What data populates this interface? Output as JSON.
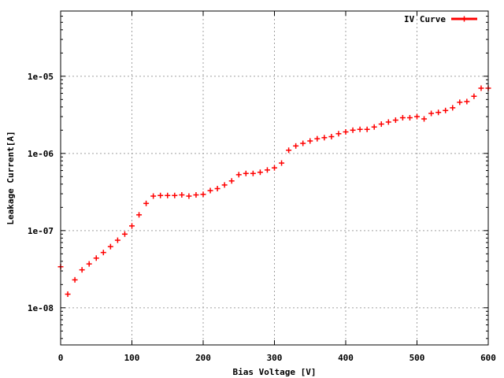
{
  "chart_data": {
    "type": "scatter",
    "title": "",
    "xlabel": "Bias Voltage [V]",
    "ylabel": "Leakage Current[A]",
    "xlim": [
      0,
      600
    ],
    "ylim": [
      3.3e-09,
      7e-05
    ],
    "y_scale": "log",
    "grid": true,
    "legend_position": "top-right",
    "x_ticks": [
      {
        "value": 0,
        "label": "0"
      },
      {
        "value": 100,
        "label": "100"
      },
      {
        "value": 200,
        "label": "200"
      },
      {
        "value": 300,
        "label": "300"
      },
      {
        "value": 400,
        "label": "400"
      },
      {
        "value": 500,
        "label": "500"
      },
      {
        "value": 600,
        "label": "600"
      }
    ],
    "y_ticks": [
      {
        "value": 1e-08,
        "label": "1e-08"
      },
      {
        "value": 1e-07,
        "label": "1e-07"
      },
      {
        "value": 1e-06,
        "label": "1e-06"
      },
      {
        "value": 1e-05,
        "label": "1e-05"
      }
    ],
    "series": [
      {
        "name": "IV Curve",
        "color": "#ff0000",
        "marker": "plus",
        "x": [
          0,
          10,
          20,
          30,
          40,
          50,
          60,
          70,
          80,
          90,
          100,
          110,
          120,
          130,
          140,
          150,
          160,
          170,
          180,
          190,
          200,
          210,
          220,
          230,
          240,
          250,
          260,
          270,
          280,
          290,
          300,
          310,
          320,
          330,
          340,
          350,
          360,
          370,
          380,
          390,
          400,
          410,
          420,
          430,
          440,
          450,
          460,
          470,
          480,
          490,
          500,
          510,
          520,
          530,
          540,
          550,
          560,
          570,
          580,
          590,
          600
        ],
        "y": [
          3.4e-08,
          1.5e-08,
          2.3e-08,
          3.1e-08,
          3.7e-08,
          4.4e-08,
          5.2e-08,
          6.2e-08,
          7.5e-08,
          9e-08,
          1.15e-07,
          1.6e-07,
          2.25e-07,
          2.8e-07,
          2.85e-07,
          2.85e-07,
          2.85e-07,
          2.9e-07,
          2.8e-07,
          2.9e-07,
          2.95e-07,
          3.3e-07,
          3.5e-07,
          3.9e-07,
          4.4e-07,
          5.3e-07,
          5.5e-07,
          5.5e-07,
          5.7e-07,
          6.1e-07,
          6.5e-07,
          7.5e-07,
          1.1e-06,
          1.25e-06,
          1.35e-06,
          1.45e-06,
          1.55e-06,
          1.6e-06,
          1.65e-06,
          1.8e-06,
          1.9e-06,
          2e-06,
          2.05e-06,
          2.05e-06,
          2.2e-06,
          2.4e-06,
          2.55e-06,
          2.7e-06,
          2.9e-06,
          2.9e-06,
          3e-06,
          2.8e-06,
          3.3e-06,
          3.4e-06,
          3.6e-06,
          3.9e-06,
          4.6e-06,
          4.7e-06,
          5.5e-06,
          7e-06,
          7e-06
        ]
      }
    ]
  }
}
